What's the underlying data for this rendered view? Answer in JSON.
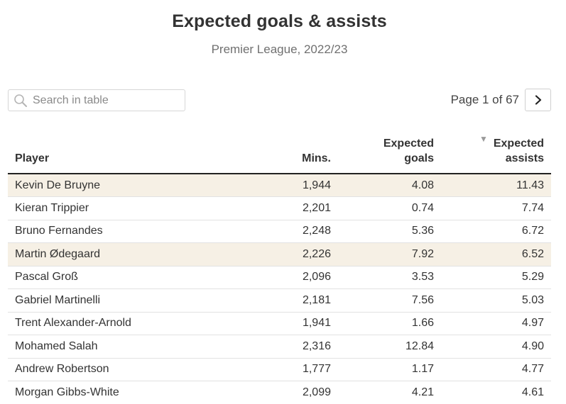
{
  "title": "Expected goals & assists",
  "subtitle": "Premier League, 2022/23",
  "search": {
    "placeholder": "Search in table",
    "icon": "search-icon"
  },
  "pager": {
    "label": "Page 1 of 67",
    "next_icon": "chevron-right-icon"
  },
  "colors": {
    "highlight_row": "#f6f0e5",
    "header_rule": "#222222"
  },
  "table": {
    "columns": [
      {
        "label": "Player"
      },
      {
        "label": "Mins."
      },
      {
        "label": "Expected goals",
        "line1": "Expected",
        "line2": "goals"
      },
      {
        "label": "Expected assists",
        "line1": "Expected",
        "line2": "assists",
        "sort_indicator": "▼",
        "sorted": "descending"
      }
    ],
    "rows": [
      {
        "player": "Kevin De Bruyne",
        "mins": "1,944",
        "xg": "4.08",
        "xa": "11.43",
        "highlighted": true
      },
      {
        "player": "Kieran Trippier",
        "mins": "2,201",
        "xg": "0.74",
        "xa": "7.74",
        "highlighted": false
      },
      {
        "player": "Bruno Fernandes",
        "mins": "2,248",
        "xg": "5.36",
        "xa": "6.72",
        "highlighted": false
      },
      {
        "player": "Martin Ødegaard",
        "mins": "2,226",
        "xg": "7.92",
        "xa": "6.52",
        "highlighted": true
      },
      {
        "player": "Pascal Groß",
        "mins": "2,096",
        "xg": "3.53",
        "xa": "5.29",
        "highlighted": false
      },
      {
        "player": "Gabriel Martinelli",
        "mins": "2,181",
        "xg": "7.56",
        "xa": "5.03",
        "highlighted": false
      },
      {
        "player": "Trent Alexander-Arnold",
        "mins": "1,941",
        "xg": "1.66",
        "xa": "4.97",
        "highlighted": false
      },
      {
        "player": "Mohamed Salah",
        "mins": "2,316",
        "xg": "12.84",
        "xa": "4.90",
        "highlighted": false
      },
      {
        "player": "Andrew Robertson",
        "mins": "1,777",
        "xg": "1.17",
        "xa": "4.77",
        "highlighted": false
      },
      {
        "player": "Morgan Gibbs-White",
        "mins": "2,099",
        "xg": "4.21",
        "xa": "4.61",
        "highlighted": false
      }
    ]
  }
}
